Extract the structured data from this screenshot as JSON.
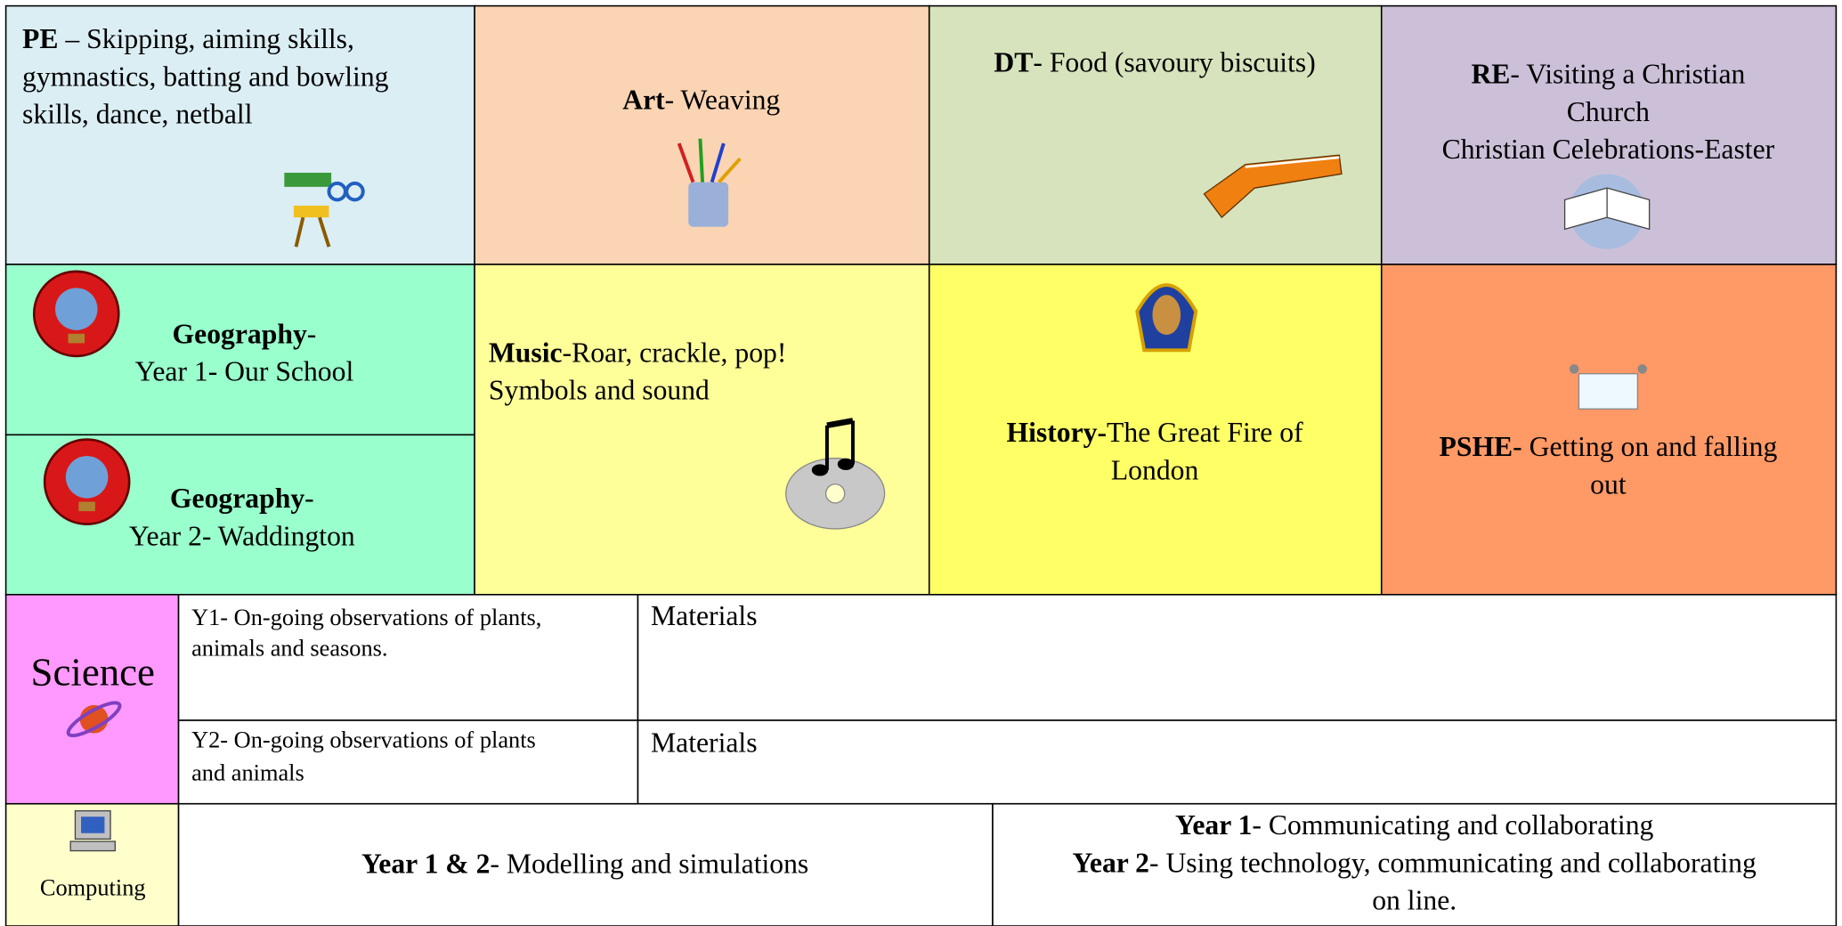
{
  "cells": [
    {
      "lines": [
        {
          "bold": "PE",
          "text": " – Skipping, aiming skills,"
        },
        {
          "text": "gymnastics, batting and bowling"
        },
        {
          "text": "skills, dance, netball"
        }
      ]
    },
    {
      "lines": [
        {
          "bold": "Art",
          "text": "- Weaving"
        }
      ]
    },
    {
      "lines": [
        {
          "bold": "DT",
          "text": "- Food (savoury biscuits)"
        }
      ]
    },
    {
      "lines": [
        {
          "bold": "RE",
          "text": "- Visiting a Christian"
        },
        {
          "text": "Church"
        },
        {
          "text": "Christian Celebrations-Easter"
        }
      ]
    },
    {
      "lines": [
        {
          "bold": "Geography",
          "text": "-"
        },
        {
          "text": "Year 1- Our School"
        }
      ]
    },
    {
      "lines": [
        {
          "bold": "Geography",
          "text": "-"
        },
        {
          "text": "Year 2- Waddington"
        }
      ]
    },
    {
      "lines": [
        {
          "bold": "Music",
          "text": "-Roar, crackle, pop!"
        },
        {
          "text": "Symbols and sound"
        }
      ]
    },
    {
      "lines": [
        {
          "bold": "History-",
          "text": "The Great Fire of"
        },
        {
          "text": "London"
        }
      ]
    },
    {
      "lines": [
        {
          "bold": "PSHE",
          "text": "- Getting on and falling"
        },
        {
          "text": "out"
        }
      ]
    },
    {
      "lines": [
        {
          "text": "Science"
        }
      ]
    },
    {
      "lines": [
        {
          "text": "Y1- On-going observations of plants,"
        },
        {
          "text": "animals and seasons."
        }
      ]
    },
    {
      "lines": [
        {
          "text": "Materials"
        }
      ]
    },
    {
      "lines": [
        {
          "text": "Y2- On-going observations of plants"
        },
        {
          "text": "and animals"
        }
      ]
    },
    {
      "lines": [
        {
          "text": "Materials"
        }
      ]
    },
    {
      "lines": [
        {
          "text": "Computing"
        }
      ]
    },
    {
      "lines": [
        {
          "bold": "Year 1 & 2",
          "text": "- Modelling and simulations"
        }
      ]
    },
    {
      "lines": [
        {
          "bold": "Year 1",
          "text": "- Communicating and collaborating"
        },
        {
          "bold": "Year 2",
          "text": "- Using technology, communicating and collaborating"
        },
        {
          "text": "on line."
        }
      ]
    }
  ]
}
